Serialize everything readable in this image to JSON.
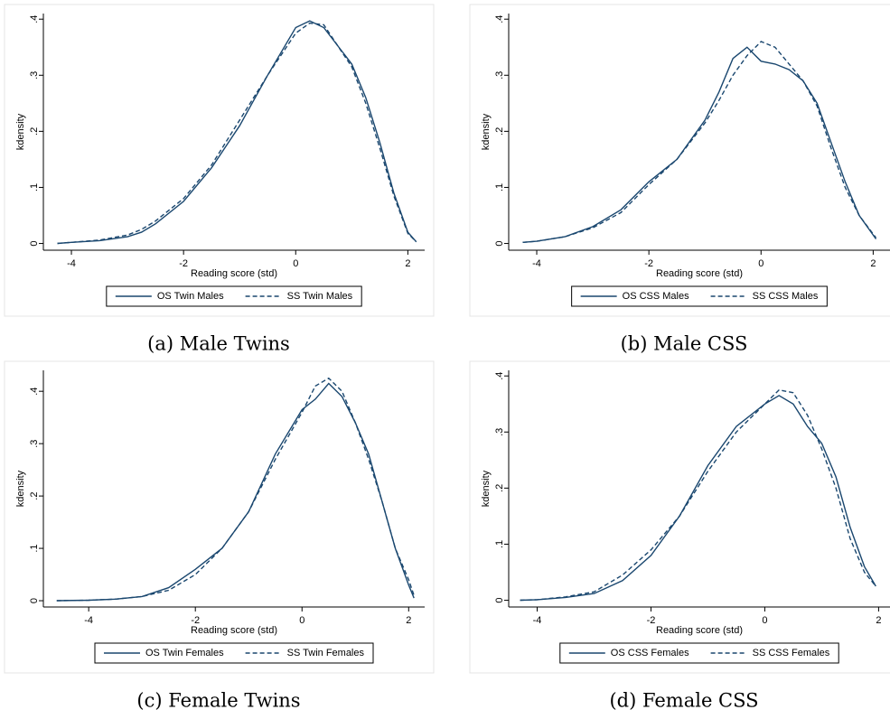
{
  "chart_data": [
    {
      "type": "line",
      "caption": "(a) Male Twins",
      "x_label": "Reading score (std)",
      "y_label": "kdensity",
      "x": [
        -4.25,
        -4,
        -3.5,
        -3,
        -2.75,
        -2.5,
        -2,
        -1.5,
        -1,
        -0.5,
        0,
        0.25,
        0.5,
        1,
        1.25,
        1.5,
        1.75,
        2,
        2.15
      ],
      "series": [
        {
          "name": "OS Twin Males",
          "color": "#1a476f",
          "style": "solid",
          "values": [
            0,
            0.002,
            0.005,
            0.012,
            0.02,
            0.035,
            0.075,
            0.135,
            0.21,
            0.3,
            0.385,
            0.397,
            0.385,
            0.32,
            0.26,
            0.18,
            0.09,
            0.02,
            0.003
          ]
        },
        {
          "name": "SS Twin Males",
          "color": "#1a476f",
          "style": "dashed",
          "values": [
            0,
            0.002,
            0.006,
            0.015,
            0.025,
            0.04,
            0.08,
            0.14,
            0.22,
            0.3,
            0.375,
            0.393,
            0.39,
            0.315,
            0.25,
            0.17,
            0.085,
            0.018,
            0.003
          ]
        }
      ],
      "xlim": [
        -4.5,
        2.3
      ],
      "ylim": [
        -0.012,
        0.41
      ],
      "xticks": [
        -4,
        -2,
        0,
        2
      ],
      "yticks": [
        0,
        {
          "value": 0.1,
          "label": ".1"
        },
        {
          "value": 0.2,
          "label": ".2"
        },
        {
          "value": 0.3,
          "label": ".3"
        },
        {
          "value": 0.4,
          "label": ".4"
        }
      ],
      "legend": "bottom"
    },
    {
      "type": "line",
      "caption": "(b) Male CSS",
      "x_label": "Reading score (std)",
      "y_label": "kdensity",
      "x": [
        -4.25,
        -4,
        -3.5,
        -3,
        -2.5,
        -2,
        -1.5,
        -1,
        -0.75,
        -0.5,
        -0.25,
        0,
        0.25,
        0.5,
        0.75,
        1,
        1.25,
        1.5,
        1.75,
        2.05
      ],
      "series": [
        {
          "name": "OS CSS Males",
          "color": "#1a476f",
          "style": "solid",
          "values": [
            0.002,
            0.004,
            0.012,
            0.03,
            0.06,
            0.11,
            0.15,
            0.22,
            0.27,
            0.33,
            0.35,
            0.325,
            0.32,
            0.31,
            0.29,
            0.25,
            0.18,
            0.11,
            0.05,
            0.008
          ]
        },
        {
          "name": "SS CSS Males",
          "color": "#1a476f",
          "style": "dashed",
          "values": [
            0.002,
            0.004,
            0.012,
            0.028,
            0.055,
            0.105,
            0.15,
            0.215,
            0.255,
            0.3,
            0.335,
            0.36,
            0.35,
            0.32,
            0.29,
            0.245,
            0.17,
            0.1,
            0.05,
            0.01
          ]
        }
      ],
      "xlim": [
        -4.5,
        2.3
      ],
      "ylim": [
        -0.012,
        0.41
      ],
      "xticks": [
        -4,
        -2,
        0,
        2
      ],
      "yticks": [
        0,
        {
          "value": 0.1,
          "label": ".1"
        },
        {
          "value": 0.2,
          "label": ".2"
        },
        {
          "value": 0.3,
          "label": ".3"
        },
        {
          "value": 0.4,
          "label": ".4"
        }
      ],
      "legend": "bottom"
    },
    {
      "type": "line",
      "caption": "(c) Female Twins",
      "x_label": "Reading score (std)",
      "y_label": "kdensity",
      "x": [
        -4.6,
        -4,
        -3.5,
        -3,
        -2.5,
        -2,
        -1.5,
        -1,
        -0.5,
        0,
        0.25,
        0.5,
        0.75,
        1,
        1.25,
        1.5,
        1.75,
        2,
        2.1
      ],
      "series": [
        {
          "name": "OS Twin Females",
          "color": "#1a476f",
          "style": "solid",
          "values": [
            0,
            0.001,
            0.003,
            0.008,
            0.025,
            0.06,
            0.1,
            0.17,
            0.28,
            0.365,
            0.385,
            0.415,
            0.39,
            0.34,
            0.28,
            0.19,
            0.1,
            0.03,
            0.005
          ]
        },
        {
          "name": "SS Twin Females",
          "color": "#1a476f",
          "style": "dashed",
          "values": [
            0,
            0.001,
            0.003,
            0.008,
            0.02,
            0.05,
            0.1,
            0.17,
            0.27,
            0.36,
            0.41,
            0.425,
            0.4,
            0.34,
            0.27,
            0.19,
            0.1,
            0.04,
            0.01
          ]
        }
      ],
      "xlim": [
        -4.85,
        2.3
      ],
      "ylim": [
        -0.012,
        0.44
      ],
      "xticks": [
        -4,
        -2,
        0,
        2
      ],
      "yticks": [
        0,
        {
          "value": 0.1,
          "label": ".1"
        },
        {
          "value": 0.2,
          "label": ".2"
        },
        {
          "value": 0.3,
          "label": ".3"
        },
        {
          "value": 0.4,
          "label": ".4"
        }
      ],
      "legend": "bottom"
    },
    {
      "type": "line",
      "caption": "(d) Female CSS",
      "x_label": "Reading score (std)",
      "y_label": "kdensity",
      "x": [
        -4.3,
        -4,
        -3.5,
        -3,
        -2.5,
        -2,
        -1.5,
        -1,
        -0.5,
        0,
        0.25,
        0.5,
        0.75,
        1,
        1.25,
        1.5,
        1.75,
        1.95
      ],
      "series": [
        {
          "name": "OS CSS Females",
          "color": "#1a476f",
          "style": "solid",
          "values": [
            0,
            0.001,
            0.005,
            0.012,
            0.035,
            0.08,
            0.15,
            0.24,
            0.31,
            0.35,
            0.365,
            0.35,
            0.31,
            0.28,
            0.22,
            0.13,
            0.06,
            0.025
          ]
        },
        {
          "name": "SS CSS Females",
          "color": "#1a476f",
          "style": "dashed",
          "values": [
            0,
            0.001,
            0.006,
            0.015,
            0.045,
            0.09,
            0.15,
            0.23,
            0.3,
            0.35,
            0.375,
            0.37,
            0.33,
            0.27,
            0.2,
            0.11,
            0.05,
            0.025
          ]
        }
      ],
      "xlim": [
        -4.5,
        2.2
      ],
      "ylim": [
        -0.012,
        0.41
      ],
      "xticks": [
        -4,
        -2,
        0,
        2
      ],
      "yticks": [
        0,
        {
          "value": 0.1,
          "label": ".1"
        },
        {
          "value": 0.2,
          "label": ".2"
        },
        {
          "value": 0.3,
          "label": ".3"
        },
        {
          "value": 0.4,
          "label": ".4"
        }
      ],
      "legend": "bottom"
    }
  ]
}
